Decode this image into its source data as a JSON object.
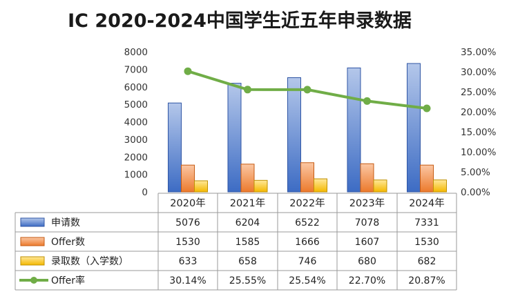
{
  "chart_data": {
    "type": "bar",
    "title": "IC 2020-2024中国学生近五年申录数据",
    "categories": [
      "2020年",
      "2021年",
      "2022年",
      "2023年",
      "2024年"
    ],
    "series": [
      {
        "name": "申请数",
        "kind": "bar",
        "axis": "left",
        "color": "#4472c4",
        "values": [
          5076,
          6204,
          6522,
          7078,
          7331
        ],
        "display": [
          "5076",
          "6204",
          "6522",
          "7078",
          "7331"
        ]
      },
      {
        "name": "Offer数",
        "kind": "bar",
        "axis": "left",
        "color": "#ed7d31",
        "values": [
          1530,
          1585,
          1666,
          1607,
          1530
        ],
        "display": [
          "1530",
          "1585",
          "1666",
          "1607",
          "1530"
        ]
      },
      {
        "name": "录取数（入学数）",
        "kind": "bar",
        "axis": "left",
        "color": "#ffc000",
        "values": [
          633,
          658,
          746,
          680,
          682
        ],
        "display": [
          "633",
          "658",
          "746",
          "680",
          "682"
        ]
      },
      {
        "name": "Offer率",
        "kind": "line",
        "axis": "right",
        "color": "#70ad47",
        "values": [
          30.14,
          25.55,
          25.54,
          22.7,
          20.87
        ],
        "display": [
          "30.14%",
          "25.55%",
          "25.54%",
          "22.70%",
          "20.87%"
        ]
      }
    ],
    "y_left": {
      "min": 0,
      "max": 8000,
      "step": 1000,
      "ticks": [
        "0",
        "1000",
        "2000",
        "3000",
        "4000",
        "5000",
        "6000",
        "7000",
        "8000"
      ]
    },
    "y_right": {
      "min": 0,
      "max": 35,
      "step": 5,
      "ticks": [
        "0.00%",
        "5.00%",
        "10.00%",
        "15.00%",
        "20.00%",
        "25.00%",
        "30.00%",
        "35.00%"
      ]
    },
    "grid": false,
    "legend": "data-table"
  }
}
